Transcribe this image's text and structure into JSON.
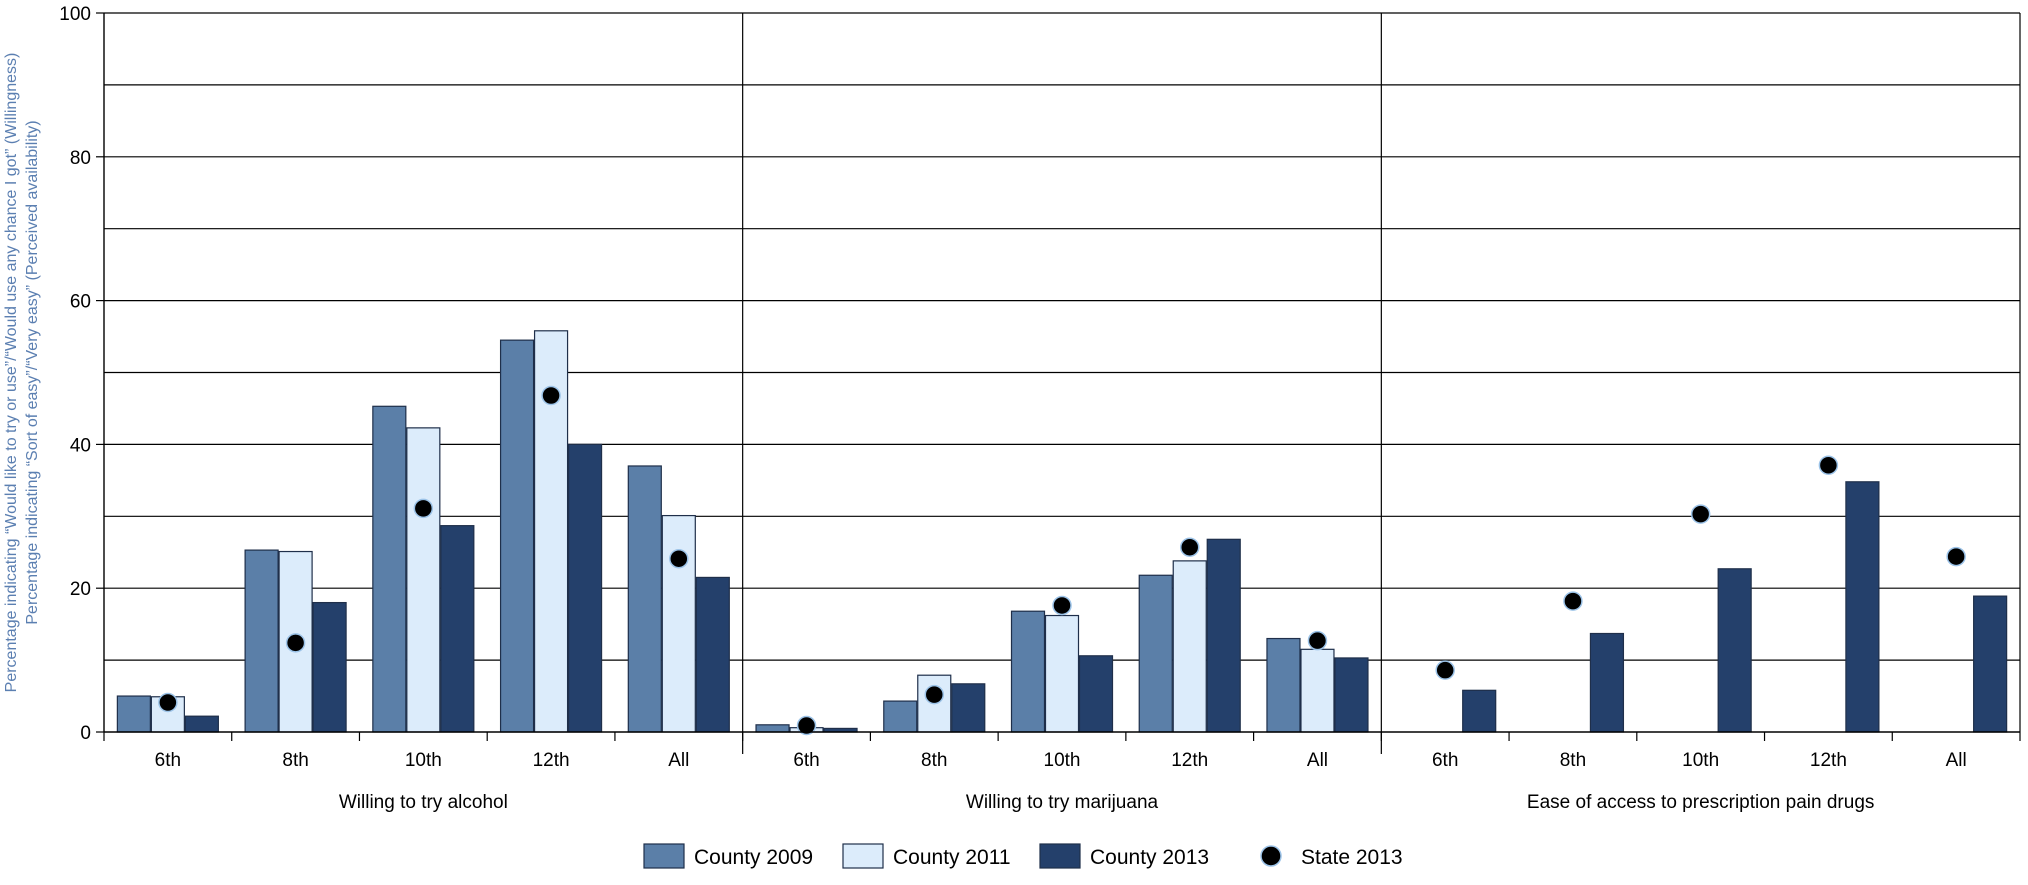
{
  "chart_data": {
    "type": "bar",
    "ylabel_lines": [
      "Percentage indicating “Would like to try or use”/“Would use any chance I got” (Willingness)",
      "Percentage indicating “Sort of easy”/“Very easy” (Perceived availability)"
    ],
    "ylim": [
      0,
      100
    ],
    "y_ticks": [
      "0",
      "20",
      "40",
      "60",
      "80",
      "100"
    ],
    "grid": true,
    "legend_position": "bottom",
    "colors": {
      "County 2009": "#5b7fa8",
      "County 2011": "#dcecfb",
      "County 2013": "#24406b",
      "State 2013": "#000000"
    },
    "categories": [
      "6th",
      "8th",
      "10th",
      "12th",
      "All"
    ],
    "groups": [
      {
        "label": "Willing to try alcohol",
        "series": [
          {
            "name": "County 2009",
            "values": [
              5,
              25.3,
              45.3,
              54.5,
              37
            ]
          },
          {
            "name": "County 2011",
            "values": [
              4.9,
              25.1,
              42.3,
              55.8,
              30.1
            ]
          },
          {
            "name": "County 2013",
            "values": [
              2.2,
              18,
              28.7,
              40,
              21.5
            ]
          }
        ],
        "state_2013": [
          4.1,
          12.4,
          31.1,
          46.8,
          24.1
        ]
      },
      {
        "label": "Willing to try marijuana",
        "series": [
          {
            "name": "County 2009",
            "values": [
              1,
              4.3,
              16.8,
              21.8,
              13
            ]
          },
          {
            "name": "County 2011",
            "values": [
              0.6,
              7.9,
              16.2,
              23.8,
              11.5
            ]
          },
          {
            "name": "County 2013",
            "values": [
              0.5,
              6.7,
              10.6,
              26.8,
              10.3
            ]
          }
        ],
        "state_2013": [
          0.9,
          5.2,
          17.6,
          25.7,
          12.7
        ]
      },
      {
        "label": "Ease of access to prescription pain drugs",
        "series": [
          {
            "name": "County 2009",
            "values": [
              null,
              null,
              null,
              null,
              null
            ]
          },
          {
            "name": "County 2011",
            "values": [
              null,
              null,
              null,
              null,
              null
            ]
          },
          {
            "name": "County 2013",
            "values": [
              5.8,
              13.7,
              22.7,
              34.8,
              18.9
            ]
          }
        ],
        "state_2013": [
          8.6,
          18.2,
          30.3,
          37.1,
          24.4
        ]
      }
    ],
    "legend": [
      {
        "name": "County 2009",
        "marker": "bar"
      },
      {
        "name": "County 2011",
        "marker": "bar"
      },
      {
        "name": "County 2013",
        "marker": "bar"
      },
      {
        "name": "State 2013",
        "marker": "dot"
      }
    ]
  }
}
